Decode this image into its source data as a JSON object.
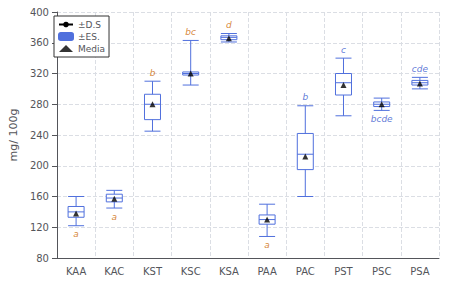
{
  "chart_data": {
    "type": "box",
    "categories": [
      "KAA",
      "KAC",
      "KST",
      "KSC",
      "KSA",
      "PAA",
      "PAC",
      "PST",
      "PSC",
      "PSA"
    ],
    "boxes": [
      {
        "median": 140,
        "q1": 133,
        "q3": 147,
        "whislo": 122,
        "whishi": 160,
        "mean": 138
      },
      {
        "median": 158,
        "q1": 153,
        "q3": 163,
        "whislo": 145,
        "whishi": 168,
        "mean": 157
      },
      {
        "median": 280,
        "q1": 260,
        "q3": 293,
        "whislo": 245,
        "whishi": 310,
        "mean": 280
      },
      {
        "median": 320,
        "q1": 318,
        "q3": 322,
        "whislo": 305,
        "whishi": 363,
        "mean": 320
      },
      {
        "median": 367,
        "q1": 364,
        "q3": 369,
        "whislo": 361,
        "whishi": 372,
        "mean": 366
      },
      {
        "median": 130,
        "q1": 124,
        "q3": 136,
        "whislo": 108,
        "whishi": 150,
        "mean": 130
      },
      {
        "median": 215,
        "q1": 195,
        "q3": 242,
        "whislo": 160,
        "whishi": 278,
        "mean": 212
      },
      {
        "median": 308,
        "q1": 292,
        "q3": 320,
        "whislo": 265,
        "whishi": 340,
        "mean": 305
      },
      {
        "median": 280,
        "q1": 277,
        "q3": 283,
        "whislo": 272,
        "whishi": 288,
        "mean": 280
      },
      {
        "median": 308,
        "q1": 305,
        "q3": 311,
        "whislo": 300,
        "whishi": 315,
        "mean": 307
      }
    ],
    "annotations": [
      {
        "text": "a",
        "side": "below",
        "color": "#cc6600"
      },
      {
        "text": "a",
        "side": "below",
        "color": "#cc6600"
      },
      {
        "text": "b",
        "side": "above",
        "color": "#cc6600"
      },
      {
        "text": "bc",
        "side": "above",
        "color": "#cc6600"
      },
      {
        "text": "d",
        "side": "above",
        "color": "#cc6600"
      },
      {
        "text": "a",
        "side": "below",
        "color": "#cc6600"
      },
      {
        "text": "b",
        "side": "above",
        "color": "#3355cc"
      },
      {
        "text": "c",
        "side": "above",
        "color": "#3355cc"
      },
      {
        "text": "bcde",
        "side": "below",
        "color": "#3355cc"
      },
      {
        "text": "cde",
        "side": "above",
        "color": "#3355cc"
      }
    ],
    "ylabel": "mg/ 100g",
    "ylim": [
      80,
      400
    ],
    "yticks": [
      80,
      120,
      160,
      200,
      240,
      280,
      320,
      360,
      400
    ],
    "grid": true,
    "legend": "upper left",
    "legend_items": [
      "±D.S",
      "±ES.",
      "Media"
    ],
    "marker": "triangle"
  }
}
